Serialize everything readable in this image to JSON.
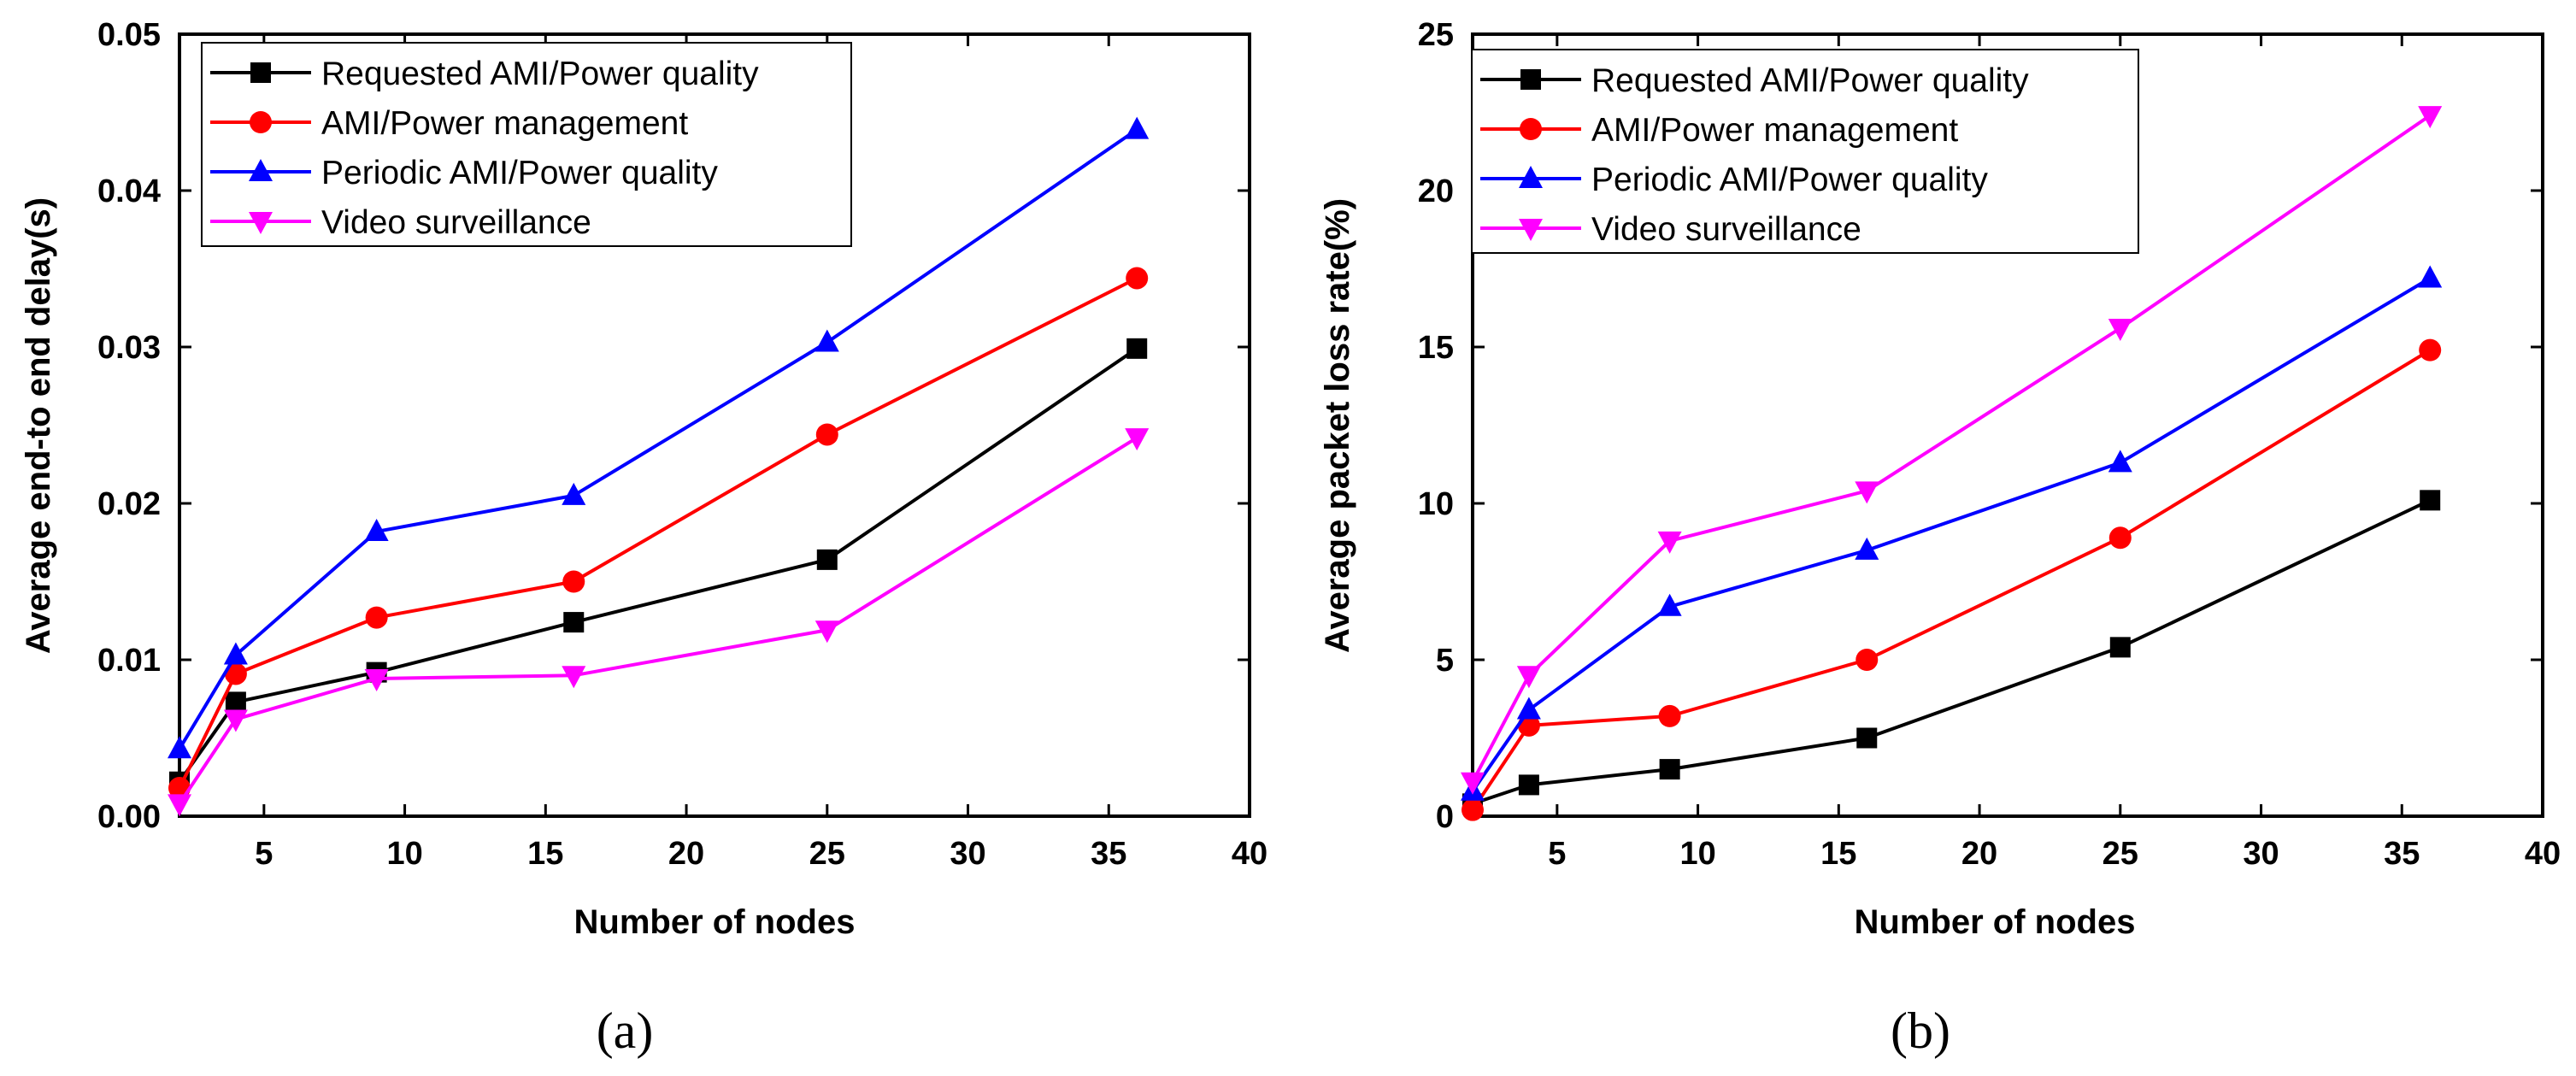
{
  "chart_data": [
    {
      "type": "line",
      "caption": "(a)",
      "title": "",
      "xlabel": "Number of nodes",
      "ylabel": "Average end-to end delay(s)",
      "xlim": [
        2,
        40
      ],
      "ylim": [
        0,
        0.05
      ],
      "xticks": [
        5,
        10,
        15,
        20,
        25,
        30,
        35,
        40
      ],
      "xtick_labels": [
        "5",
        "10",
        "15",
        "20",
        "25",
        "30",
        "35",
        "40"
      ],
      "yticks": [
        0,
        0.01,
        0.02,
        0.03,
        0.04,
        0.05
      ],
      "ytick_labels": [
        "0.00",
        "0.01",
        "0.02",
        "0.03",
        "0.04",
        "0.05"
      ],
      "legend_position": "top-left",
      "x": [
        2,
        4,
        9,
        16,
        25,
        36
      ],
      "series": [
        {
          "name": "Requested AMI/Power quality",
          "color": "#000000",
          "marker": "square",
          "values": [
            0.0022,
            0.0073,
            0.0092,
            0.0124,
            0.0164,
            0.0299
          ]
        },
        {
          "name": "AMI/Power management",
          "color": "#ff0000",
          "marker": "circle",
          "values": [
            0.0018,
            0.0091,
            0.0127,
            0.015,
            0.0244,
            0.0344
          ]
        },
        {
          "name": "Periodic AMI/Power quality",
          "color": "#0000ff",
          "marker": "triangle-up",
          "values": [
            0.0043,
            0.0103,
            0.0182,
            0.0205,
            0.0303,
            0.0439
          ]
        },
        {
          "name": "Video surveillance",
          "color": "#ff00ff",
          "marker": "triangle-down",
          "values": [
            0.0008,
            0.0062,
            0.0088,
            0.009,
            0.0119,
            0.0242
          ]
        }
      ]
    },
    {
      "type": "line",
      "caption": "(b)",
      "title": "",
      "xlabel": "Number of nodes",
      "ylabel": "Average packet loss rate(%)",
      "xlim": [
        2,
        40
      ],
      "ylim": [
        0,
        25
      ],
      "xticks": [
        5,
        10,
        15,
        20,
        25,
        30,
        35,
        40
      ],
      "xtick_labels": [
        "5",
        "10",
        "15",
        "20",
        "25",
        "30",
        "35",
        "40"
      ],
      "yticks": [
        0,
        5,
        10,
        15,
        20,
        25
      ],
      "ytick_labels": [
        "0",
        "5",
        "10",
        "15",
        "20",
        "25"
      ],
      "legend_position": "top-left",
      "x": [
        2,
        4,
        9,
        16,
        25,
        36
      ],
      "series": [
        {
          "name": "Requested AMI/Power quality",
          "color": "#000000",
          "marker": "square",
          "values": [
            0.4,
            1.0,
            1.5,
            2.5,
            5.4,
            10.1
          ]
        },
        {
          "name": "AMI/Power management",
          "color": "#ff0000",
          "marker": "circle",
          "values": [
            0.2,
            2.9,
            3.2,
            5.0,
            8.9,
            14.9
          ]
        },
        {
          "name": "Periodic AMI/Power quality",
          "color": "#0000ff",
          "marker": "triangle-up",
          "values": [
            0.8,
            3.4,
            6.7,
            8.5,
            11.3,
            17.2
          ]
        },
        {
          "name": "Video surveillance",
          "color": "#ff00ff",
          "marker": "triangle-down",
          "values": [
            1.1,
            4.5,
            8.8,
            10.4,
            15.6,
            22.4
          ]
        }
      ]
    }
  ]
}
